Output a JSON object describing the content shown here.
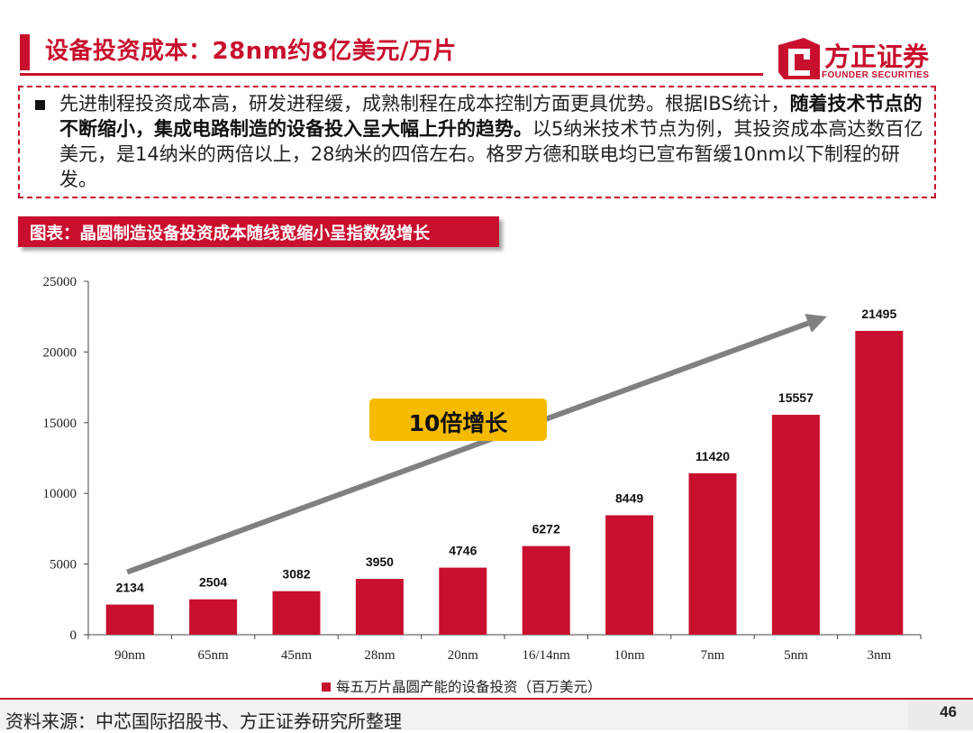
{
  "header": {
    "title": "设备投资成本：28nm约8亿美元/万片",
    "logo_cn": "方正证券",
    "logo_en": "FOUNDER SECURITIES"
  },
  "summary": {
    "part1": "先进制程投资成本高，研发进程缓，成熟制程在成本控制方面更具优势。根据IBS统计，",
    "part2_bold": "随着技术节点的不断缩小，集成电路制造的设备投入呈大幅上升的趋势。",
    "part3": "以5纳米技术节点为例，其投资成本高达数百亿美元，是14纳米的两倍以上，28纳米的四倍左右。格罗方德和联电均已宣布暂缓10nm以下制程的研发。"
  },
  "figure": {
    "label": "图表：晶圆制造设备投资成本随线宽缩小呈指数级增长",
    "callout": "10倍增长"
  },
  "chart_data": {
    "type": "bar",
    "categories": [
      "90nm",
      "65nm",
      "45nm",
      "28nm",
      "20nm",
      "16/14nm",
      "10nm",
      "7nm",
      "5nm",
      "3nm"
    ],
    "series": [
      {
        "name": "每五万片晶圆产能的设备投资（百万美元）",
        "values": [
          2134,
          2504,
          3082,
          3950,
          4746,
          6272,
          8449,
          11420,
          15557,
          21495
        ]
      }
    ],
    "ylim": [
      0,
      25000
    ],
    "yticks": [
      0,
      5000,
      10000,
      15000,
      20000,
      25000
    ],
    "bar_color": "#c8102e",
    "trend_arrow": true,
    "grid": false,
    "legend_position": "bottom"
  },
  "footer": {
    "source": "资料来源：中芯国际招股书、方正证券研究所整理",
    "page": "46"
  },
  "colors": {
    "accent": "#c8102e",
    "callout": "#f5bb00",
    "arrow": "#808080"
  }
}
